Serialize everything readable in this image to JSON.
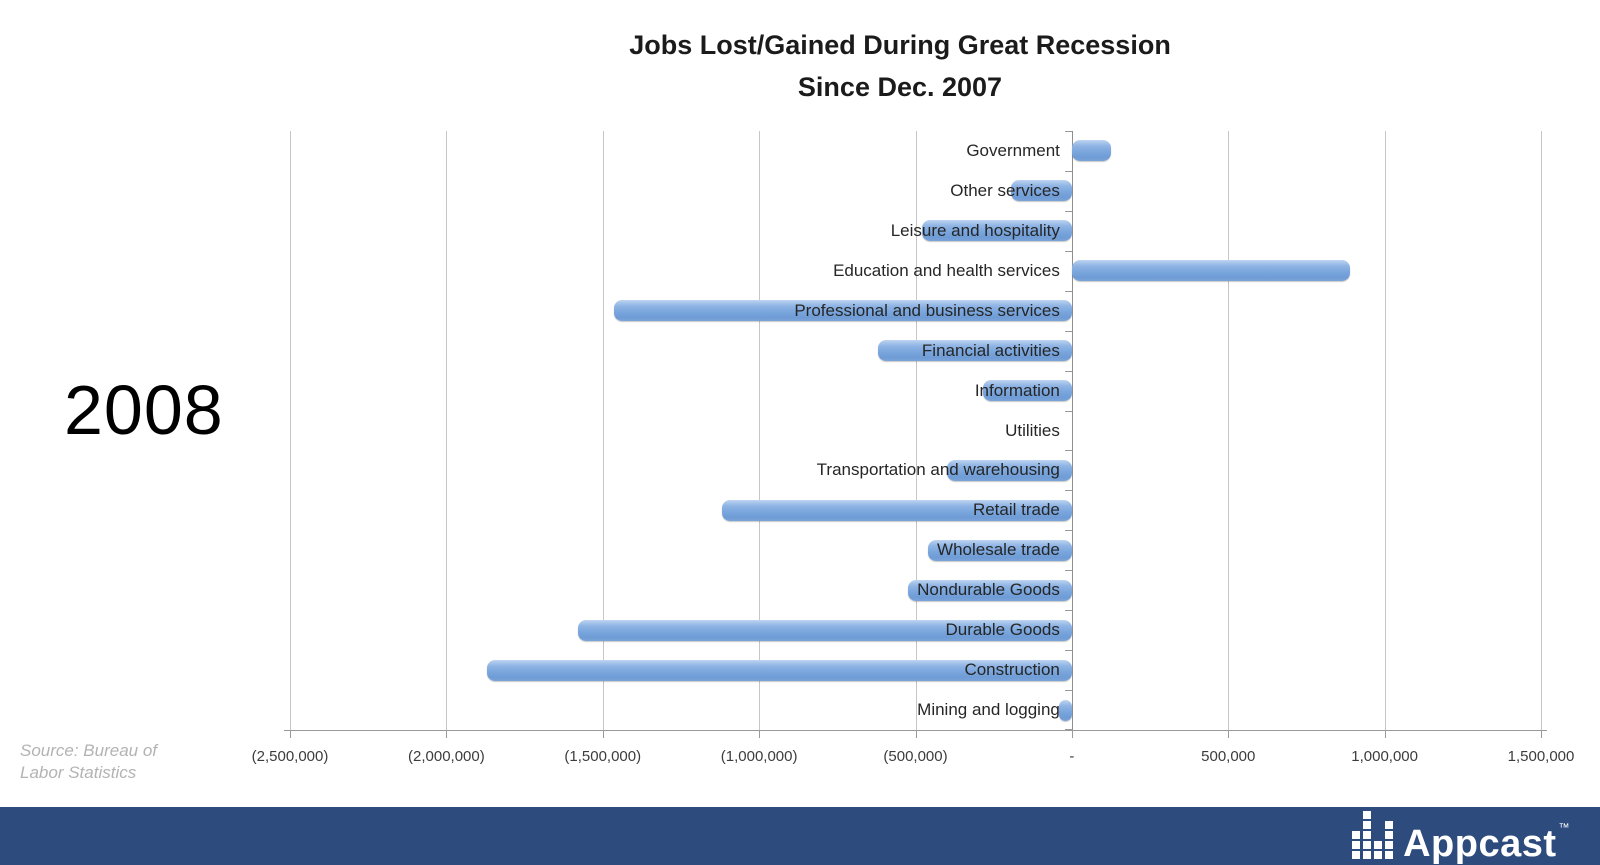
{
  "title": {
    "line1": "Jobs Lost/Gained During Great Recession",
    "line2": "Since Dec. 2007"
  },
  "year_label": "2008",
  "source_note": {
    "line1": "Source: Bureau of",
    "line2": "Labor Statistics"
  },
  "footer": {
    "brand": "Appcast",
    "trademark": "™",
    "background_color": "#2d4b7c",
    "icon": "equalizer-squares-icon",
    "icon_columns": [
      3,
      5,
      2,
      4
    ]
  },
  "chart_data": {
    "type": "bar",
    "orientation": "horizontal",
    "title": "Jobs Lost/Gained During Great Recession Since Dec. 2007",
    "categories": [
      "Government",
      "Other services",
      "Leisure and hospitality",
      "Education and health services",
      "Professional and business services",
      "Financial activities",
      "Information",
      "Utilities",
      "Transportation and warehousing",
      "Retail trade",
      "Wholesale trade",
      "Nondurable Goods",
      "Durable Goods",
      "Construction",
      "Mining and logging"
    ],
    "values": [
      125000,
      -195000,
      -480000,
      890000,
      -1465000,
      -620000,
      -285000,
      0,
      -400000,
      -1120000,
      -460000,
      -525000,
      -1580000,
      -1870000,
      -40000
    ],
    "xlim": [
      -2500000,
      1500000
    ],
    "x_ticks": [
      {
        "value": -2500000,
        "label": "(2,500,000)"
      },
      {
        "value": -2000000,
        "label": "(2,000,000)"
      },
      {
        "value": -1500000,
        "label": "(1,500,000)"
      },
      {
        "value": -1000000,
        "label": "(1,000,000)"
      },
      {
        "value": -500000,
        "label": "(500,000)"
      },
      {
        "value": 0,
        "label": "-"
      },
      {
        "value": 500000,
        "label": "500,000"
      },
      {
        "value": 1000000,
        "label": "1,000,000"
      },
      {
        "value": 1500000,
        "label": "1,500,000"
      }
    ],
    "bar_color": "#7aa6de",
    "negative_format": "parentheses",
    "grid": true,
    "legend": false
  }
}
